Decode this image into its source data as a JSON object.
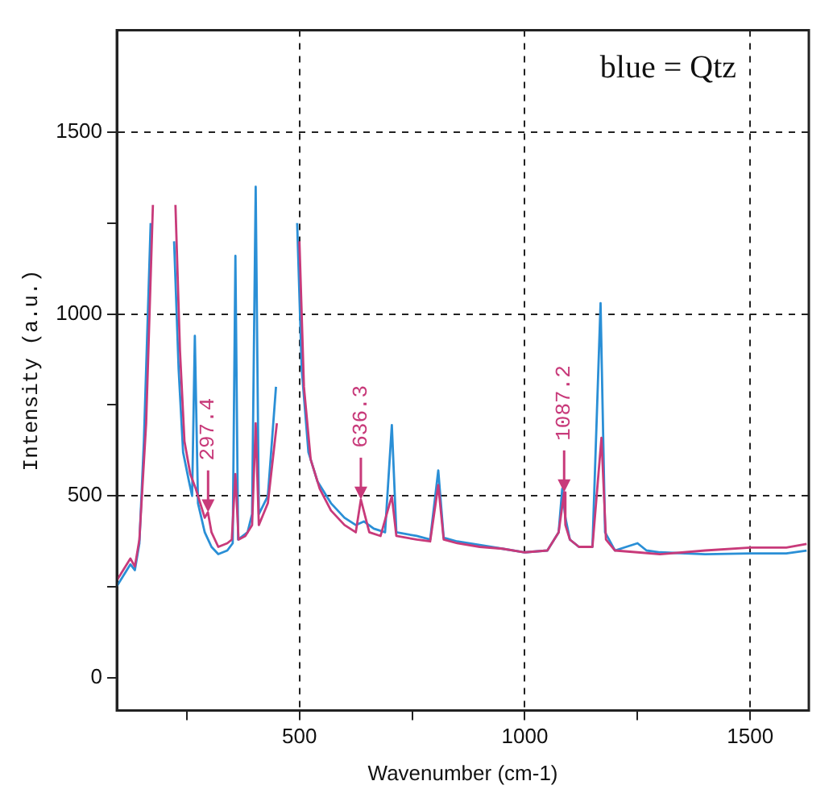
{
  "chart_data": {
    "type": "line",
    "xlabel": "Wavenumber (cm-1)",
    "ylabel": "Intensity (a.u.)",
    "xlim": [
      95,
      1630
    ],
    "ylim": [
      -90,
      1780
    ],
    "xticks": [
      {
        "value": 250,
        "label": null
      },
      500,
      {
        "value": 750,
        "label": null
      },
      1000,
      {
        "value": 1250,
        "label": null
      },
      1500
    ],
    "yticks": [
      0,
      {
        "value": 250,
        "label": null
      },
      500,
      {
        "value": 750,
        "label": null
      },
      1000,
      {
        "value": 1250,
        "label": null
      },
      1500
    ],
    "grid": true,
    "marker": "none",
    "line_style": "solid",
    "annotations": [
      "blue = Qtz",
      {
        "text": "297.4",
        "x": 297.4,
        "y": 455
      },
      {
        "text": "636.3",
        "x": 636.3,
        "y": 490
      },
      {
        "text": "1087.2",
        "x": 1087.2,
        "y": 510
      }
    ],
    "series": [
      {
        "color": "#2a8fd6",
        "x": [
          95,
          110,
          125,
          135,
          145,
          155,
          170,
          180,
          210,
          222,
          232,
          242,
          255,
          262,
          268,
          275,
          290,
          305,
          320,
          340,
          352,
          358,
          364,
          385,
          395,
          403,
          410,
          430,
          448,
          458,
          485,
          495,
          505,
          520,
          540,
          570,
          600,
          625,
          643,
          665,
          690,
          705,
          715,
          760,
          790,
          808,
          820,
          850,
          900,
          950,
          1000,
          1050,
          1075,
          1083,
          1090,
          1100,
          1120,
          1150,
          1168,
          1178,
          1200,
          1250,
          1270,
          1300,
          1400,
          1500,
          1580,
          1625
        ],
        "values": [
          252,
          282,
          312,
          296,
          370,
          650,
          1250,
          null,
          null,
          1200,
          850,
          620,
          540,
          500,
          940,
          480,
          400,
          360,
          340,
          350,
          370,
          1160,
          380,
          400,
          450,
          1350,
          450,
          500,
          800,
          null,
          null,
          1250,
          850,
          620,
          540,
          480,
          440,
          420,
          430,
          410,
          400,
          695,
          400,
          390,
          380,
          570,
          385,
          375,
          365,
          355,
          345,
          350,
          400,
          520,
          440,
          380,
          360,
          360,
          1030,
          400,
          350,
          370,
          350,
          345,
          340,
          342,
          342,
          350
        ]
      },
      {
        "color": "#c83a7a",
        "x": [
          95,
          110,
          125,
          135,
          145,
          160,
          175,
          185,
          215,
          225,
          235,
          245,
          258,
          270,
          280,
          290,
          297,
          305,
          320,
          340,
          350,
          358,
          365,
          380,
          395,
          403,
          410,
          430,
          450,
          462,
          490,
          500,
          510,
          525,
          545,
          570,
          600,
          625,
          636.3,
          655,
          680,
          705,
          715,
          760,
          790,
          808,
          820,
          850,
          900,
          950,
          1000,
          1050,
          1075,
          1087.2,
          1090,
          1100,
          1120,
          1150,
          1170,
          1180,
          1200,
          1250,
          1300,
          1400,
          1500,
          1580,
          1625
        ],
        "values": [
          268,
          298,
          328,
          306,
          380,
          700,
          1300,
          null,
          null,
          1300,
          900,
          650,
          560,
          520,
          480,
          440,
          455,
          400,
          360,
          370,
          380,
          560,
          380,
          390,
          420,
          700,
          420,
          480,
          700,
          null,
          null,
          1200,
          800,
          600,
          520,
          460,
          420,
          400,
          490,
          400,
          390,
          500,
          390,
          380,
          375,
          530,
          380,
          370,
          360,
          355,
          345,
          350,
          400,
          510,
          420,
          380,
          360,
          360,
          660,
          380,
          350,
          345,
          340,
          350,
          358,
          358,
          368
        ]
      }
    ]
  }
}
